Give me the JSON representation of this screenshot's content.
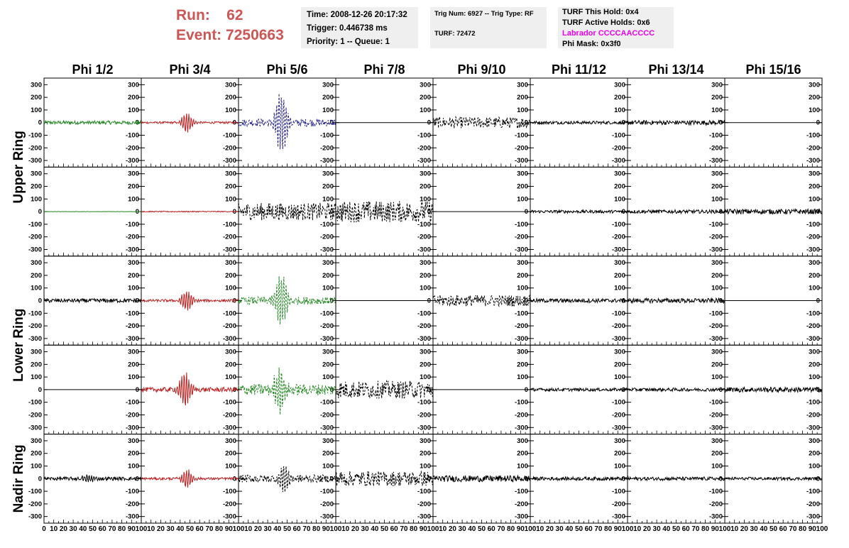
{
  "header": {
    "run_label": "Run:",
    "run_value": "62",
    "event_label": "Event:",
    "event_value": "7250663",
    "box1": {
      "time": "Time: 2008-12-26 20:17:32",
      "trigger": "Trigger: 0.446738 ms",
      "priority": "Priority: 1 -- Queue: 1"
    },
    "box2": {
      "trig": "Trig Num: 6927 -- Trig Type: RF",
      "turf": "TURF: 72472"
    },
    "box3": {
      "hold": "TURF This Hold: 0x4",
      "active": "TURF Active Holds: 0x6",
      "labrador": "Labrador CCCCAACCCC",
      "mask": "Phi Mask: 0x3f0"
    }
  },
  "colors": {
    "header_text": "#cc5555",
    "info_bg": "#efefef",
    "labrador_text": "#ee00ee",
    "green": "#228822",
    "red": "#bb2222",
    "blue": "#222288",
    "black": "#000000"
  },
  "chart_data": {
    "type": "line",
    "column_titles": [
      "Phi 1/2",
      "Phi 3/4",
      "Phi 5/6",
      "Phi 7/8",
      "Phi 9/10",
      "Phi 11/12",
      "Phi 13/14",
      "Phi 15/16"
    ],
    "ring_labels": [
      "Upper Ring",
      "Lower Ring",
      "Nadir Ring"
    ],
    "ylim": [
      -330,
      330
    ],
    "yticks": [
      -300,
      -200,
      -100,
      0,
      100,
      200,
      300
    ],
    "xlim": [
      0,
      100
    ],
    "xticks": [
      0,
      10,
      20,
      30,
      40,
      50,
      60,
      70,
      80,
      90,
      100
    ],
    "rows": [
      [
        {
          "color": "green",
          "style": "solid",
          "amp": 14,
          "pulse": 0,
          "center": 50,
          "flat": false
        },
        {
          "color": "red",
          "style": "solid",
          "amp": 8,
          "pulse": 80,
          "center": 47,
          "flat": false
        },
        {
          "color": "blue",
          "style": "dashed",
          "amp": 30,
          "pulse": 260,
          "center": 44,
          "flat": false
        },
        {
          "color": "black",
          "style": "solid",
          "amp": 0,
          "pulse": 0,
          "center": 50,
          "flat": true
        },
        {
          "color": "black",
          "style": "dashed",
          "amp": 45,
          "pulse": 0,
          "center": 50,
          "flat": false
        },
        {
          "color": "black",
          "style": "solid",
          "amp": 12,
          "pulse": 0,
          "center": 50,
          "flat": false
        },
        {
          "color": "black",
          "style": "solid",
          "amp": 18,
          "pulse": 0,
          "center": 50,
          "flat": false
        },
        {
          "color": "black",
          "style": "solid",
          "amp": 0,
          "pulse": 0,
          "center": 50,
          "flat": true
        }
      ],
      [
        {
          "color": "green",
          "style": "solid",
          "amp": 1,
          "pulse": 0,
          "center": 50,
          "flat": false
        },
        {
          "color": "red",
          "style": "solid",
          "amp": 4,
          "pulse": 0,
          "center": 50,
          "flat": false
        },
        {
          "color": "black",
          "style": "dashed",
          "amp": 70,
          "pulse": 0,
          "center": 50,
          "flat": false
        },
        {
          "color": "black",
          "style": "dashed",
          "amp": 85,
          "pulse": 0,
          "center": 50,
          "flat": false
        },
        {
          "color": "black",
          "style": "solid",
          "amp": 0,
          "pulse": 0,
          "center": 50,
          "flat": true
        },
        {
          "color": "black",
          "style": "solid",
          "amp": 12,
          "pulse": 0,
          "center": 50,
          "flat": false
        },
        {
          "color": "black",
          "style": "solid",
          "amp": 14,
          "pulse": 0,
          "center": 50,
          "flat": false
        },
        {
          "color": "black",
          "style": "solid",
          "amp": 20,
          "pulse": 0,
          "center": 50,
          "flat": false
        }
      ],
      [
        {
          "color": "black",
          "style": "solid",
          "amp": 16,
          "pulse": 0,
          "center": 50,
          "flat": false
        },
        {
          "color": "red",
          "style": "solid",
          "amp": 10,
          "pulse": 80,
          "center": 47,
          "flat": false
        },
        {
          "color": "green",
          "style": "dashed",
          "amp": 30,
          "pulse": 210,
          "center": 44,
          "flat": false
        },
        {
          "color": "black",
          "style": "solid",
          "amp": 0,
          "pulse": 0,
          "center": 50,
          "flat": true
        },
        {
          "color": "black",
          "style": "dashed",
          "amp": 45,
          "pulse": 0,
          "center": 50,
          "flat": false
        },
        {
          "color": "black",
          "style": "solid",
          "amp": 16,
          "pulse": 0,
          "center": 50,
          "flat": false
        },
        {
          "color": "black",
          "style": "solid",
          "amp": 18,
          "pulse": 0,
          "center": 50,
          "flat": false
        },
        {
          "color": "black",
          "style": "solid",
          "amp": 0,
          "pulse": 0,
          "center": 50,
          "flat": true
        }
      ],
      [
        {
          "color": "black",
          "style": "solid",
          "amp": 0,
          "pulse": 0,
          "center": 50,
          "flat": true
        },
        {
          "color": "red",
          "style": "solid",
          "amp": 18,
          "pulse": 140,
          "center": 45,
          "flat": false
        },
        {
          "color": "green",
          "style": "dashed",
          "amp": 45,
          "pulse": 170,
          "center": 42,
          "flat": false
        },
        {
          "color": "black",
          "style": "dashed",
          "amp": 70,
          "pulse": 0,
          "center": 50,
          "flat": false
        },
        {
          "color": "black",
          "style": "solid",
          "amp": 0,
          "pulse": 0,
          "center": 50,
          "flat": true
        },
        {
          "color": "black",
          "style": "solid",
          "amp": 12,
          "pulse": 0,
          "center": 50,
          "flat": false
        },
        {
          "color": "black",
          "style": "solid",
          "amp": 13,
          "pulse": 0,
          "center": 50,
          "flat": false
        },
        {
          "color": "black",
          "style": "solid",
          "amp": 20,
          "pulse": 0,
          "center": 50,
          "flat": false
        }
      ],
      [
        {
          "color": "black",
          "style": "solid",
          "amp": 14,
          "pulse": 30,
          "center": 45,
          "flat": false
        },
        {
          "color": "red",
          "style": "solid",
          "amp": 10,
          "pulse": 70,
          "center": 47,
          "flat": false
        },
        {
          "color": "black",
          "style": "dashed",
          "amp": 30,
          "pulse": 120,
          "center": 47,
          "flat": false
        },
        {
          "color": "black",
          "style": "dashed",
          "amp": 60,
          "pulse": 0,
          "center": 50,
          "flat": false
        },
        {
          "color": "black",
          "style": "solid",
          "amp": 25,
          "pulse": 0,
          "center": 50,
          "flat": false
        },
        {
          "color": "black",
          "style": "solid",
          "amp": 14,
          "pulse": 0,
          "center": 50,
          "flat": false
        },
        {
          "color": "black",
          "style": "solid",
          "amp": 14,
          "pulse": 0,
          "center": 50,
          "flat": false
        },
        {
          "color": "black",
          "style": "solid",
          "amp": 12,
          "pulse": 0,
          "center": 50,
          "flat": false
        }
      ]
    ]
  }
}
